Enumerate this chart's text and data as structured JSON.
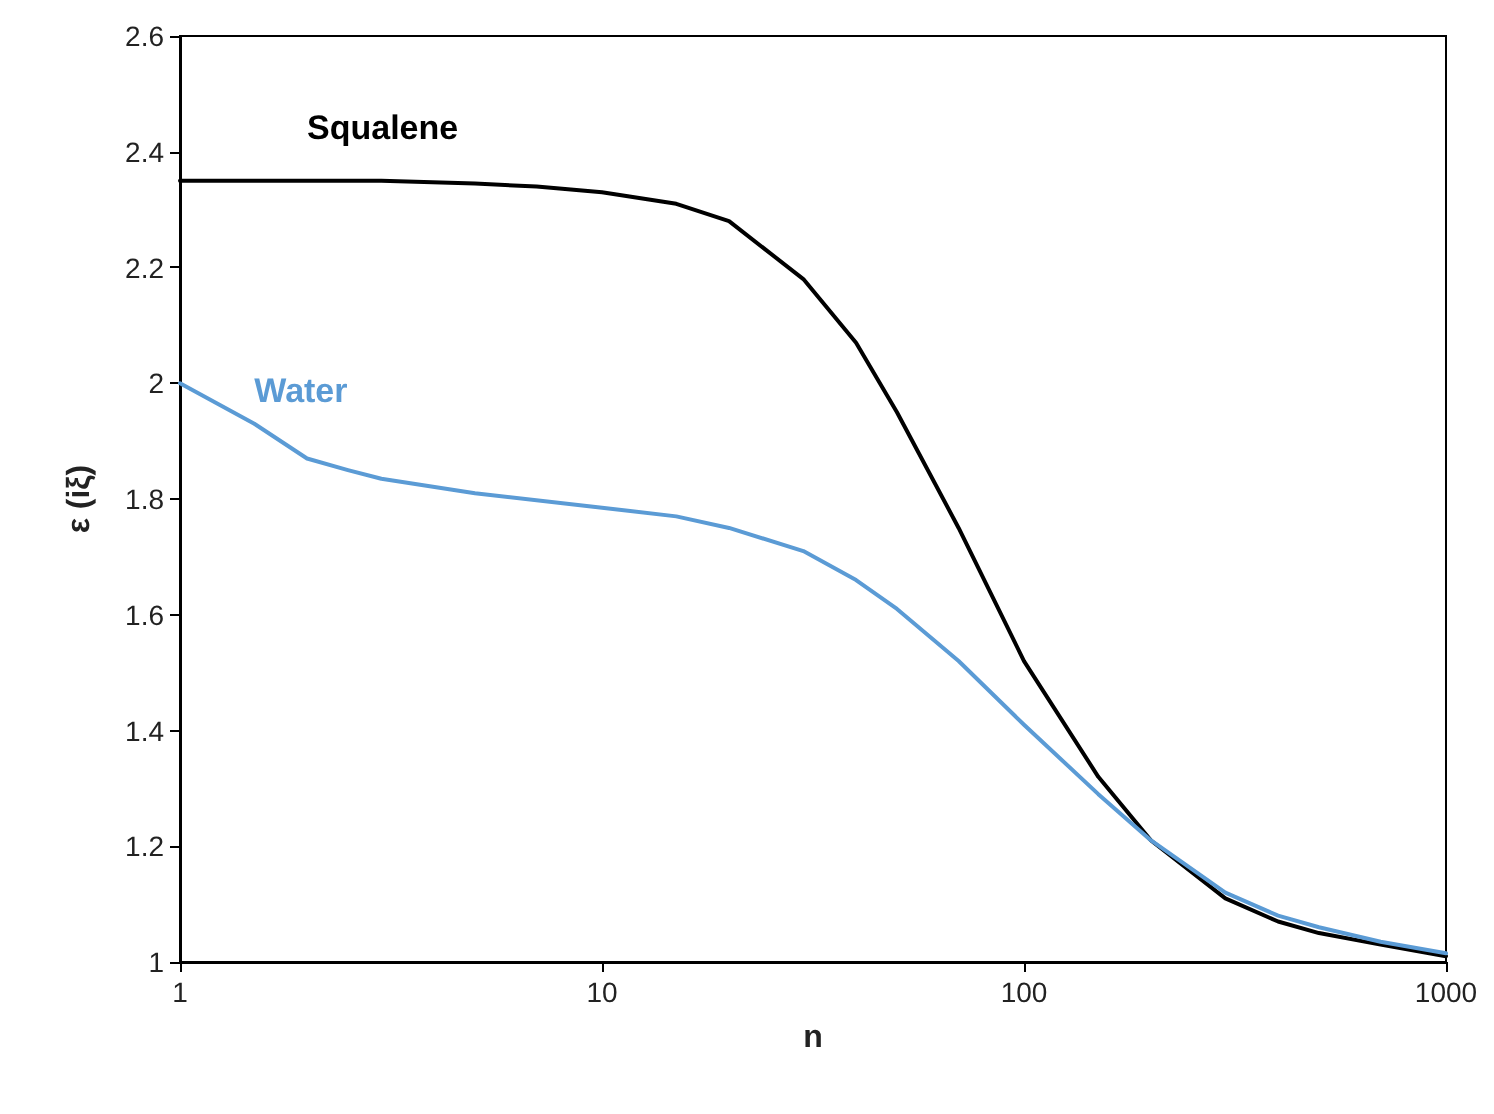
{
  "chart_data": {
    "type": "line",
    "xlabel": "n",
    "ylabel": "ε (iξ)",
    "log": "x",
    "xlim": [
      1,
      1000
    ],
    "xticks": [
      1,
      10,
      100,
      1000
    ],
    "ylim": [
      1,
      2.6
    ],
    "yticks": [
      1,
      1.2,
      1.4,
      1.6,
      1.8,
      2,
      2.2,
      2.4,
      2.6
    ],
    "grid": false,
    "legend": false,
    "marker": "none",
    "line_style": "solid",
    "series": [
      {
        "name": "Squalene",
        "color": "#000000",
        "x": [
          1,
          2,
          3,
          5,
          7,
          10,
          15,
          20,
          30,
          40,
          50,
          70,
          100,
          150,
          200,
          300,
          400,
          500,
          700,
          1000
        ],
        "values": [
          2.35,
          2.35,
          2.35,
          2.345,
          2.34,
          2.33,
          2.31,
          2.28,
          2.18,
          2.07,
          1.95,
          1.75,
          1.52,
          1.32,
          1.21,
          1.11,
          1.07,
          1.05,
          1.03,
          1.01
        ]
      },
      {
        "name": "Water",
        "color": "#5b9bd5",
        "x": [
          1,
          1.5,
          2,
          2.5,
          3,
          5,
          10,
          15,
          20,
          30,
          40,
          50,
          70,
          100,
          150,
          200,
          300,
          400,
          500,
          700,
          1000
        ],
        "values": [
          2.0,
          1.93,
          1.87,
          1.85,
          1.835,
          1.81,
          1.785,
          1.77,
          1.75,
          1.71,
          1.66,
          1.61,
          1.52,
          1.41,
          1.29,
          1.21,
          1.12,
          1.08,
          1.06,
          1.035,
          1.015
        ]
      }
    ]
  }
}
